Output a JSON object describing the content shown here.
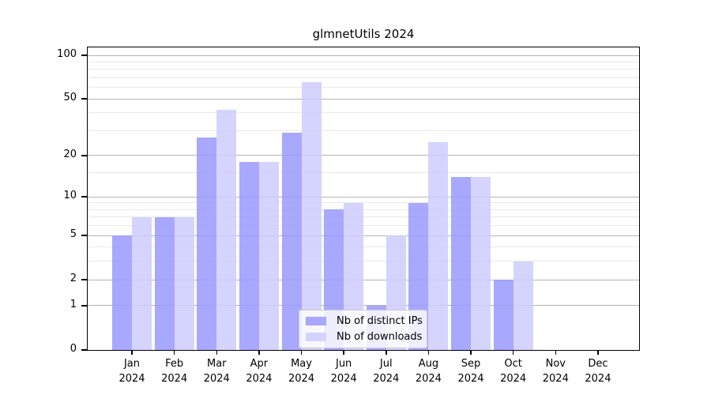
{
  "title": "glmnetUtils 2024",
  "chart_data": {
    "type": "bar",
    "title": "glmnetUtils 2024",
    "categories": [
      "Jan",
      "Feb",
      "Mar",
      "Apr",
      "May",
      "Jun",
      "Jul",
      "Aug",
      "Sep",
      "Oct",
      "Nov",
      "Dec"
    ],
    "year_label": "2024",
    "series": [
      {
        "name": "Nb of distinct IPs",
        "color": "rgba(153,153,255,0.85)",
        "values": [
          5,
          7,
          27,
          18,
          29,
          8,
          1,
          9,
          14,
          2,
          0,
          0
        ]
      },
      {
        "name": "Nb of downloads",
        "color": "rgba(204,204,255,0.85)",
        "values": [
          7,
          7,
          42,
          18,
          65,
          9,
          5,
          25,
          14,
          3,
          0,
          0
        ]
      }
    ],
    "xlabel": "",
    "ylabel": "",
    "y_axis": {
      "scale": "log10(1+x)",
      "range": [
        0,
        100
      ],
      "major_ticks": [
        0,
        1,
        2,
        5,
        10,
        20,
        50,
        100
      ],
      "minor_gridlines": [
        3,
        4,
        6,
        7,
        8,
        9,
        15,
        30,
        40,
        60,
        70,
        80,
        90
      ]
    },
    "grid": true,
    "legend_position": "inside-bottom-center",
    "colors": {
      "bar_distinct_ips": "#9999ff",
      "bar_downloads": "#ccccff",
      "grid_major": "#b4b4b4",
      "grid_minor": "#e9e9e9",
      "axis": "#000000"
    }
  }
}
